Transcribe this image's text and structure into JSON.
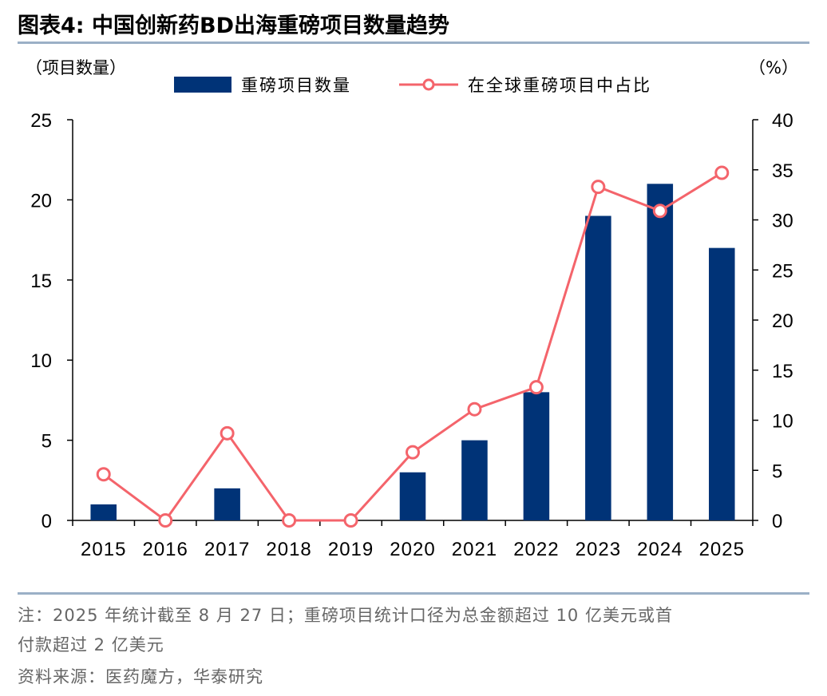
{
  "title": "图表4:  中国创新药BD出海重磅项目数量趋势",
  "chart_data": {
    "type": "bar+line",
    "categories": [
      "2015",
      "2016",
      "2017",
      "2018",
      "2019",
      "2020",
      "2021",
      "2022",
      "2023",
      "2024",
      "2025"
    ],
    "series": [
      {
        "name": "重磅项目数量",
        "type": "bar",
        "axis": "left",
        "color": "#003377",
        "values": [
          1,
          0,
          2,
          0,
          0,
          3,
          5,
          8,
          19,
          21,
          17
        ]
      },
      {
        "name": "在全球重磅项目中占比",
        "type": "line",
        "axis": "right",
        "color": "#f4646b",
        "values": [
          4.6,
          0,
          8.7,
          0,
          0,
          6.8,
          11.1,
          13.3,
          33.3,
          30.9,
          34.7
        ]
      }
    ],
    "ylabel_left": "（项目数量）",
    "ylabel_right": "（%）",
    "ylim_left": [
      0,
      25
    ],
    "ylim_right": [
      0,
      40
    ],
    "yticks_left": [
      0,
      5,
      10,
      15,
      20,
      25
    ],
    "yticks_right": [
      0,
      5,
      10,
      15,
      20,
      25,
      30,
      35,
      40
    ],
    "legend_position": "top-center",
    "grid": false
  },
  "notes": {
    "line1": "注：2025 年统计截至 8 月 27 日；重磅项目统计口径为总金额超过 10 亿美元或首",
    "line2": "付款超过 2 亿美元",
    "source": "资料来源：医药魔方，华泰研究"
  }
}
